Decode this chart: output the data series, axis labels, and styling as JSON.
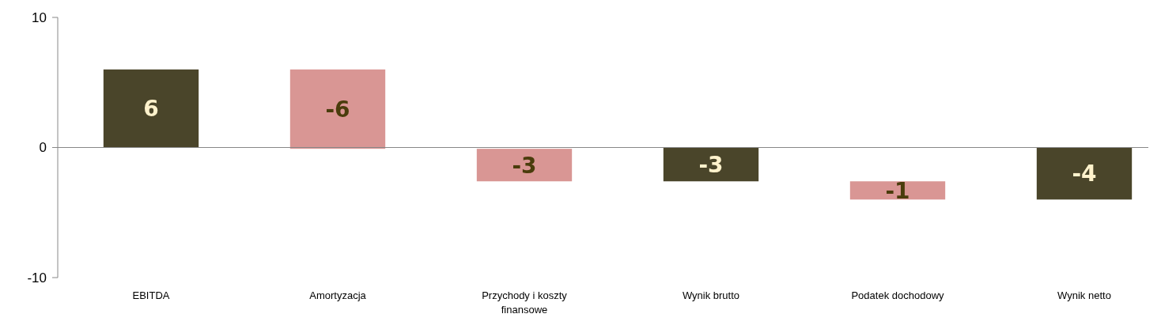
{
  "chart_data": {
    "type": "bar",
    "categories": [
      "EBITDA",
      "Amortyzacja",
      "Przychody i koszty finansowe",
      "Wynik brutto",
      "Podatek dochodowy",
      "Wynik netto"
    ],
    "values": [
      6,
      -6.1,
      -2.5,
      -2.6,
      -1.4,
      -4.0
    ],
    "base": [
      0,
      6,
      -0.1,
      0,
      -2.6,
      0
    ],
    "colors": [
      "#4a452a",
      "#d99694",
      "#d99694",
      "#4a452a",
      "#d99694",
      "#4a452a"
    ],
    "value_labels": [
      "6",
      "-6",
      "-3",
      "-3",
      "-1",
      "-4"
    ],
    "ylim": [
      -10,
      10
    ],
    "yticks": [
      -10,
      0,
      10
    ]
  }
}
